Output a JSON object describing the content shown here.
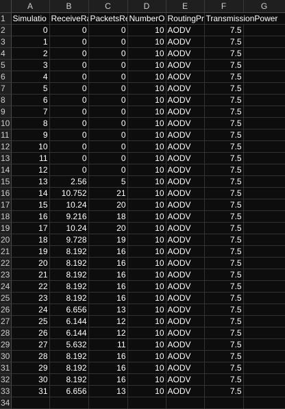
{
  "column_headers": [
    "A",
    "B",
    "C",
    "D",
    "E",
    "F",
    "G"
  ],
  "header_row": {
    "row_number": "1",
    "cells": [
      "Simulatio",
      "ReceiveRa",
      "PacketsRe",
      "NumberO",
      "RoutingPr",
      "TransmissionPower",
      ""
    ]
  },
  "rows": [
    {
      "n": "2",
      "v": [
        "0",
        "0",
        "0",
        "10",
        "AODV",
        "7.5"
      ]
    },
    {
      "n": "3",
      "v": [
        "1",
        "0",
        "0",
        "10",
        "AODV",
        "7.5"
      ]
    },
    {
      "n": "4",
      "v": [
        "2",
        "0",
        "0",
        "10",
        "AODV",
        "7.5"
      ]
    },
    {
      "n": "5",
      "v": [
        "3",
        "0",
        "0",
        "10",
        "AODV",
        "7.5"
      ]
    },
    {
      "n": "6",
      "v": [
        "4",
        "0",
        "0",
        "10",
        "AODV",
        "7.5"
      ]
    },
    {
      "n": "7",
      "v": [
        "5",
        "0",
        "0",
        "10",
        "AODV",
        "7.5"
      ]
    },
    {
      "n": "8",
      "v": [
        "6",
        "0",
        "0",
        "10",
        "AODV",
        "7.5"
      ]
    },
    {
      "n": "9",
      "v": [
        "7",
        "0",
        "0",
        "10",
        "AODV",
        "7.5"
      ]
    },
    {
      "n": "10",
      "v": [
        "8",
        "0",
        "0",
        "10",
        "AODV",
        "7.5"
      ]
    },
    {
      "n": "11",
      "v": [
        "9",
        "0",
        "0",
        "10",
        "AODV",
        "7.5"
      ]
    },
    {
      "n": "12",
      "v": [
        "10",
        "0",
        "0",
        "10",
        "AODV",
        "7.5"
      ]
    },
    {
      "n": "13",
      "v": [
        "11",
        "0",
        "0",
        "10",
        "AODV",
        "7.5"
      ]
    },
    {
      "n": "14",
      "v": [
        "12",
        "0",
        "0",
        "10",
        "AODV",
        "7.5"
      ]
    },
    {
      "n": "15",
      "v": [
        "13",
        "2.56",
        "5",
        "10",
        "AODV",
        "7.5"
      ]
    },
    {
      "n": "16",
      "v": [
        "14",
        "10.752",
        "21",
        "10",
        "AODV",
        "7.5"
      ]
    },
    {
      "n": "17",
      "v": [
        "15",
        "10.24",
        "20",
        "10",
        "AODV",
        "7.5"
      ]
    },
    {
      "n": "18",
      "v": [
        "16",
        "9.216",
        "18",
        "10",
        "AODV",
        "7.5"
      ]
    },
    {
      "n": "19",
      "v": [
        "17",
        "10.24",
        "20",
        "10",
        "AODV",
        "7.5"
      ]
    },
    {
      "n": "20",
      "v": [
        "18",
        "9.728",
        "19",
        "10",
        "AODV",
        "7.5"
      ]
    },
    {
      "n": "21",
      "v": [
        "19",
        "8.192",
        "16",
        "10",
        "AODV",
        "7.5"
      ]
    },
    {
      "n": "22",
      "v": [
        "20",
        "8.192",
        "16",
        "10",
        "AODV",
        "7.5"
      ]
    },
    {
      "n": "23",
      "v": [
        "21",
        "8.192",
        "16",
        "10",
        "AODV",
        "7.5"
      ]
    },
    {
      "n": "24",
      "v": [
        "22",
        "8.192",
        "16",
        "10",
        "AODV",
        "7.5"
      ]
    },
    {
      "n": "25",
      "v": [
        "23",
        "8.192",
        "16",
        "10",
        "AODV",
        "7.5"
      ]
    },
    {
      "n": "26",
      "v": [
        "24",
        "6.656",
        "13",
        "10",
        "AODV",
        "7.5"
      ]
    },
    {
      "n": "27",
      "v": [
        "25",
        "6.144",
        "12",
        "10",
        "AODV",
        "7.5"
      ]
    },
    {
      "n": "28",
      "v": [
        "26",
        "6.144",
        "12",
        "10",
        "AODV",
        "7.5"
      ]
    },
    {
      "n": "29",
      "v": [
        "27",
        "5.632",
        "11",
        "10",
        "AODV",
        "7.5"
      ]
    },
    {
      "n": "30",
      "v": [
        "28",
        "8.192",
        "16",
        "10",
        "AODV",
        "7.5"
      ]
    },
    {
      "n": "31",
      "v": [
        "29",
        "8.192",
        "16",
        "10",
        "AODV",
        "7.5"
      ]
    },
    {
      "n": "32",
      "v": [
        "30",
        "8.192",
        "16",
        "10",
        "AODV",
        "7.5"
      ]
    },
    {
      "n": "33",
      "v": [
        "31",
        "6.656",
        "13",
        "10",
        "AODV",
        "7.5"
      ]
    }
  ],
  "partial_row": {
    "n": "34"
  },
  "colors": {
    "background": "#0d0d0d",
    "header_background": "#1f1f1f",
    "text": "#ffffff",
    "gridline": "#333333"
  }
}
